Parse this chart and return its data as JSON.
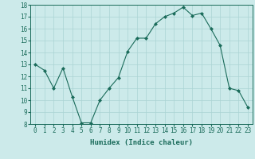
{
  "x": [
    0,
    1,
    2,
    3,
    4,
    5,
    6,
    7,
    8,
    9,
    10,
    11,
    12,
    13,
    14,
    15,
    16,
    17,
    18,
    19,
    20,
    21,
    22,
    23
  ],
  "y": [
    13,
    12.5,
    11,
    12.7,
    10.3,
    8.1,
    8.1,
    10.0,
    11.0,
    11.9,
    14.1,
    15.2,
    15.2,
    16.4,
    17.0,
    17.3,
    17.8,
    17.1,
    17.3,
    16.0,
    14.6,
    11.0,
    10.8,
    9.4
  ],
  "line_color": "#1a6b5a",
  "marker": "D",
  "marker_size": 2,
  "bg_color": "#cceaea",
  "grid_color": "#aad4d4",
  "xlabel": "Humidex (Indice chaleur)",
  "ylim": [
    8,
    18
  ],
  "xlim": [
    -0.5,
    23.5
  ],
  "yticks": [
    8,
    9,
    10,
    11,
    12,
    13,
    14,
    15,
    16,
    17,
    18
  ],
  "xticks": [
    0,
    1,
    2,
    3,
    4,
    5,
    6,
    7,
    8,
    9,
    10,
    11,
    12,
    13,
    14,
    15,
    16,
    17,
    18,
    19,
    20,
    21,
    22,
    23
  ],
  "tick_fontsize": 5.5,
  "label_fontsize": 6.5
}
